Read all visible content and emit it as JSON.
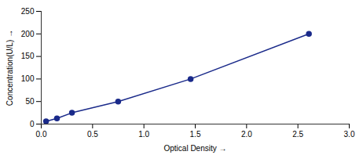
{
  "chart_data": {
    "type": "line",
    "x": [
      0.047,
      0.153,
      0.299,
      0.749,
      1.455,
      2.607
    ],
    "values": [
      6.25,
      12.5,
      25,
      50,
      100,
      200
    ],
    "color": "#1a2a8a",
    "marker": "circle",
    "line_style": "solid",
    "xlabel": "Optical Density",
    "ylabel": "Concentration(U/L)",
    "xlim": [
      0,
      3
    ],
    "ylim": [
      0,
      250
    ],
    "xticks": [
      {
        "value": 0,
        "label": "0.0"
      },
      {
        "value": 0.5,
        "label": "0.5"
      },
      {
        "value": 1,
        "label": "1.0"
      },
      {
        "value": 1.5,
        "label": "1.5"
      },
      {
        "value": 2,
        "label": "2.0"
      },
      {
        "value": 2.5,
        "label": "2.5"
      },
      {
        "value": 3,
        "label": "3.0"
      }
    ],
    "yticks": [
      0,
      50,
      100,
      150,
      200,
      250
    ],
    "grid": false
  }
}
